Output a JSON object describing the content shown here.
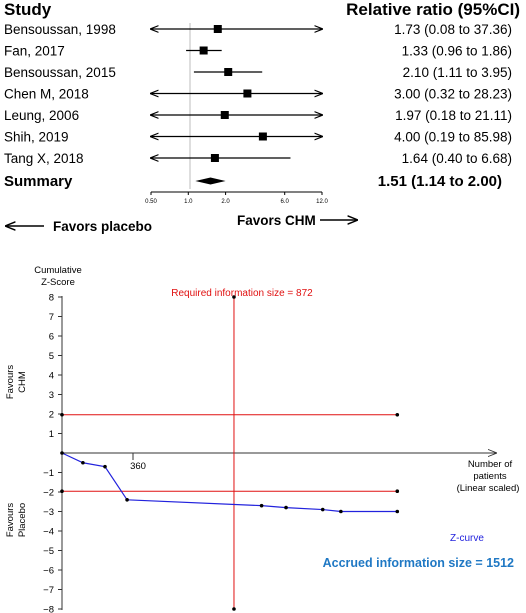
{
  "chart_data": [
    {
      "type": "forest",
      "headers": {
        "study": "Study",
        "ratio": "Relative ratio (95%CI)"
      },
      "scale": "log",
      "xlim": [
        0.5,
        12.0
      ],
      "x_ticks": [
        {
          "value": 0.5,
          "label": "0.50"
        },
        {
          "value": 1.0,
          "label": "1.0"
        },
        {
          "value": 2.0,
          "label": "2.0"
        },
        {
          "value": 6.0,
          "label": "6.0"
        },
        {
          "value": 12.0,
          "label": "12.0"
        }
      ],
      "reference_line": 1.0,
      "studies": [
        {
          "name": "Bensoussan, 1998",
          "estimate": 1.73,
          "lower": 0.08,
          "upper": 37.36,
          "label": "1.73 (0.08 to 37.36)"
        },
        {
          "name": "Fan, 2017",
          "estimate": 1.33,
          "lower": 0.96,
          "upper": 1.86,
          "label": "1.33 (0.96 to  1.86)"
        },
        {
          "name": "Bensoussan, 2015",
          "estimate": 2.1,
          "lower": 1.11,
          "upper": 3.95,
          "label": "2.10 (1.11 to  3.95)"
        },
        {
          "name": "Chen M, 2018",
          "estimate": 3.0,
          "lower": 0.32,
          "upper": 28.23,
          "label": "3.00 (0.32 to 28.23)"
        },
        {
          "name": "Leung, 2006",
          "estimate": 1.97,
          "lower": 0.18,
          "upper": 21.11,
          "label": "1.97 (0.18 to 21.11)"
        },
        {
          "name": "Shih, 2019",
          "estimate": 4.0,
          "lower": 0.19,
          "upper": 85.98,
          "label": "4.00 (0.19 to 85.98)"
        },
        {
          "name": "Tang X, 2018",
          "estimate": 1.64,
          "lower": 0.4,
          "upper": 6.68,
          "label": "1.64 (0.40 to  6.68)"
        }
      ],
      "summary": {
        "name": "Summary",
        "estimate": 1.51,
        "lower": 1.14,
        "upper": 2.0,
        "label": "1.51 (1.14 to 2.00)"
      },
      "favors_left": "Favors placebo",
      "favors_right": "Favors CHM"
    },
    {
      "type": "line",
      "ylabel_lines": [
        "Cumulative",
        "Z-Score"
      ],
      "xlabel_lines": [
        "Number of",
        "patients",
        "(Linear scaled)"
      ],
      "ylim": [
        -8,
        8
      ],
      "y_ticks": [
        8,
        7,
        6,
        5,
        4,
        3,
        2,
        1,
        -1,
        -2,
        -3,
        -4,
        -5,
        -6,
        -7,
        -8
      ],
      "x_max": 1800,
      "x_tick": {
        "value": 360,
        "label": "360"
      },
      "favours_top_lines": [
        "Favours",
        "CHM"
      ],
      "favours_bottom_lines": [
        "Favours",
        "Placebo"
      ],
      "boundaries": [
        {
          "name": "upper",
          "y": 1.96,
          "x_end": 1700,
          "color": "#e01010"
        },
        {
          "name": "lower",
          "y": -1.96,
          "x_end": 1700,
          "color": "#e01010"
        }
      ],
      "required_information_size": {
        "value": 872,
        "label": "Required information size = 872",
        "color": "#e01010"
      },
      "z_curve": {
        "name": "Z-curve",
        "color": "#2222dd",
        "points": [
          {
            "x": 0,
            "y": 0
          },
          {
            "x": 106,
            "y": -0.5
          },
          {
            "x": 218,
            "y": -0.7
          },
          {
            "x": 330,
            "y": -2.4
          },
          {
            "x": 1012,
            "y": -2.7
          },
          {
            "x": 1136,
            "y": -2.8
          },
          {
            "x": 1322,
            "y": -2.9
          },
          {
            "x": 1414,
            "y": -3.0
          },
          {
            "x": 1700,
            "y": -3.0
          }
        ]
      },
      "accrued_label": "Accrued information size = 1512",
      "accrued_color": "#1f78c4"
    }
  ]
}
